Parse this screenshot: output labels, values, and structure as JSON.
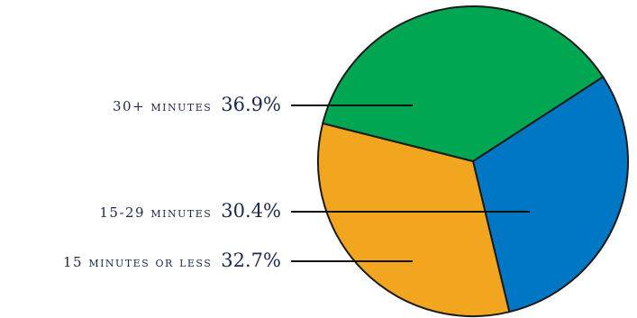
{
  "chart_data": {
    "type": "pie",
    "title": "",
    "slices": [
      {
        "label": "15-29 minutes",
        "value": 30.4,
        "value_label": "30.4%",
        "color": "#0077c4"
      },
      {
        "label": "15 minutes or less",
        "value": 32.7,
        "value_label": "32.7%",
        "color": "#f2a51f"
      },
      {
        "label": "30+ minutes",
        "value": 36.9,
        "value_label": "36.9%",
        "color": "#00a651"
      }
    ],
    "legend": "none (leader-line labels on left)"
  }
}
